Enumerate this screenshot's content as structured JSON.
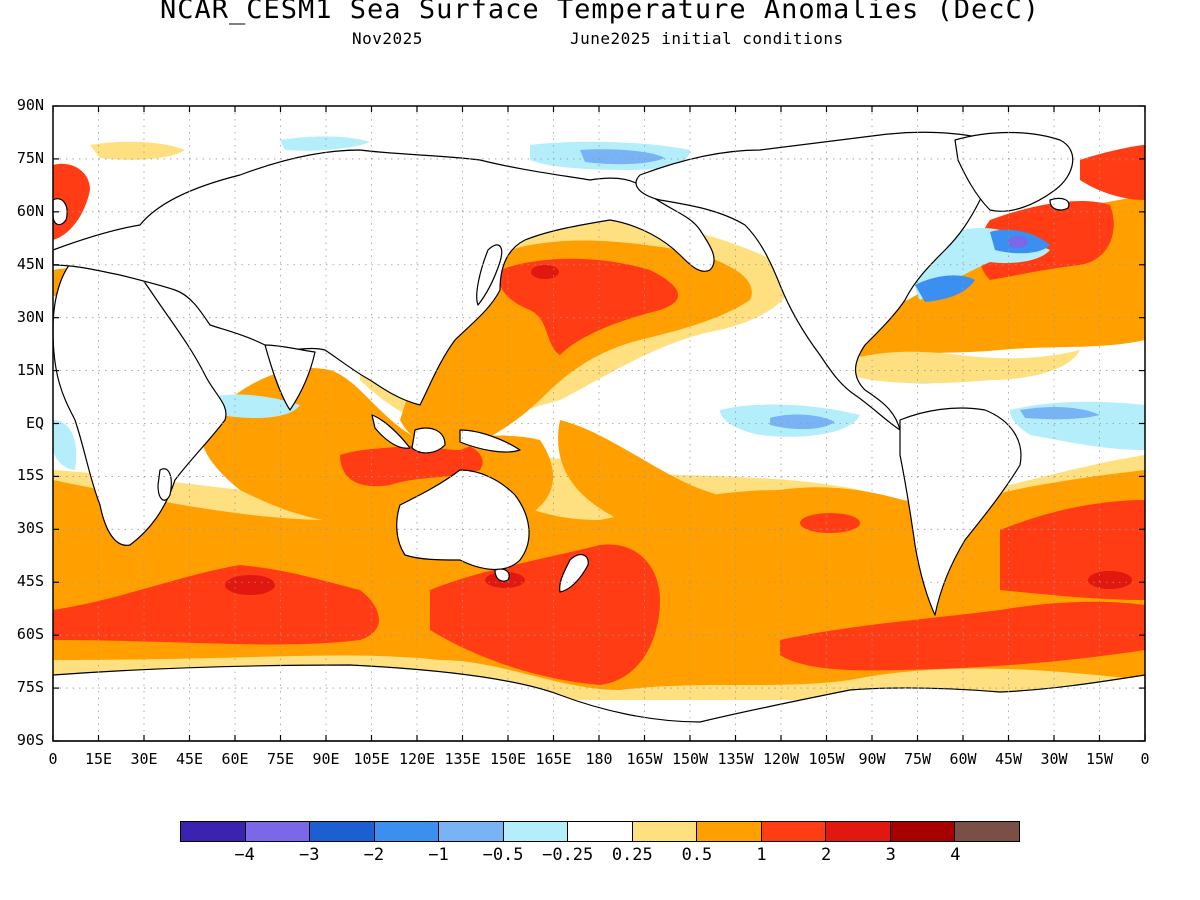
{
  "title": "NCAR_CESM1 Sea Surface Temperature Anomalies (DecC)",
  "subtitle_left": "Nov2025",
  "subtitle_right": "June2025 initial conditions",
  "lat_labels": [
    "90N",
    "75N",
    "60N",
    "45N",
    "30N",
    "15N",
    "EQ",
    "15S",
    "30S",
    "45S",
    "60S",
    "75S",
    "90S"
  ],
  "lon_labels": [
    "0",
    "15E",
    "30E",
    "45E",
    "60E",
    "75E",
    "90E",
    "105E",
    "120E",
    "135E",
    "150E",
    "165E",
    "180",
    "165W",
    "150W",
    "135W",
    "120W",
    "105W",
    "90W",
    "75W",
    "60W",
    "45W",
    "30W",
    "15W",
    "0"
  ],
  "colorbar": {
    "colors": [
      "#3b22b0",
      "#7a68e8",
      "#1c5fd0",
      "#3a8ff0",
      "#78b4f5",
      "#b4eefa",
      "#ffffff",
      "#ffe080",
      "#ffa000",
      "#ff3c14",
      "#e01810",
      "#a80000",
      "#7a5046"
    ],
    "labels": [
      "-4",
      "-3",
      "-2",
      "-1",
      "-0.5",
      "-0.25",
      "0.25",
      "0.5",
      "1",
      "2",
      "3",
      "4"
    ]
  },
  "map_colors": {
    "anom_0_25": "#ffe080",
    "anom_0_5": "#ffa000",
    "anom_1": "#ff3c14",
    "anom_2": "#e01810",
    "anom_neg_0_25": "#b4eefa",
    "anom_neg_0_5": "#78b4f5",
    "anom_neg_1": "#3a8ff0",
    "anom_neg_2": "#1c5fd0",
    "anom_neg_3": "#7a68e8",
    "land": "#ffffff",
    "coast": "#000000",
    "grid": "#9a9a9a"
  }
}
